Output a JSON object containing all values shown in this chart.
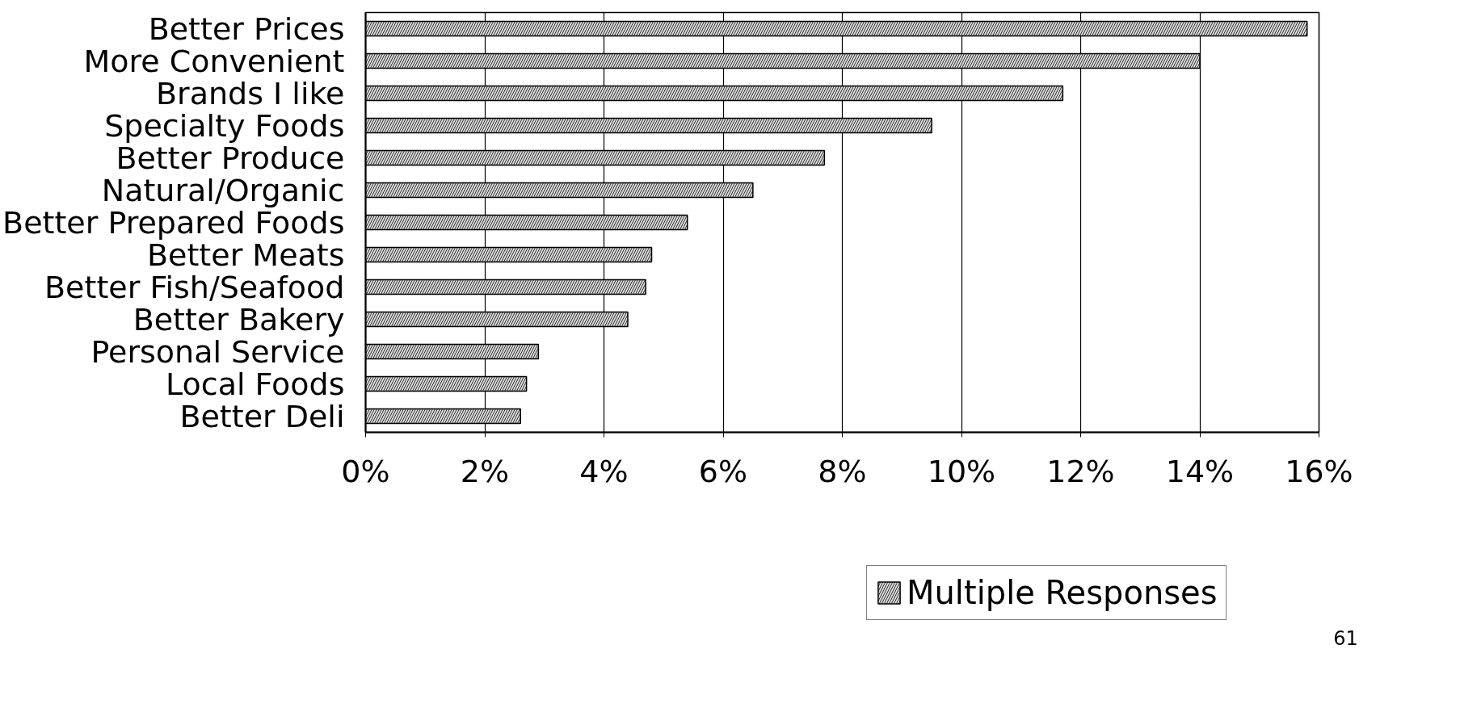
{
  "chart_data": {
    "type": "bar",
    "orientation": "horizontal",
    "categories": [
      "Better Prices",
      "More Convenient",
      "Brands I like",
      "Specialty Foods",
      "Better Produce",
      "Natural/Organic",
      "Better Prepared Foods",
      "Better Meats",
      "Better Fish/Seafood",
      "Better Bakery",
      "Personal Service",
      "Local Foods",
      "Better Deli"
    ],
    "series": [
      {
        "name": "Multiple Responses",
        "color": "#d9d9d9",
        "values": [
          15.8,
          14.0,
          11.7,
          9.5,
          7.7,
          6.5,
          5.4,
          4.8,
          4.7,
          4.4,
          2.9,
          2.7,
          2.6
        ]
      }
    ],
    "xlim": [
      0,
      16
    ],
    "xticks": [
      {
        "value": 0,
        "label": "0%"
      },
      {
        "value": 2,
        "label": "2%"
      },
      {
        "value": 4,
        "label": "4%"
      },
      {
        "value": 6,
        "label": "6%"
      },
      {
        "value": 8,
        "label": "8%"
      },
      {
        "value": 10,
        "label": "10%"
      },
      {
        "value": 12,
        "label": "12%"
      },
      {
        "value": 14,
        "label": "14%"
      },
      {
        "value": 16,
        "label": "16%"
      }
    ],
    "grid": "x",
    "legend": "bottom",
    "annotations": [
      "61"
    ]
  }
}
